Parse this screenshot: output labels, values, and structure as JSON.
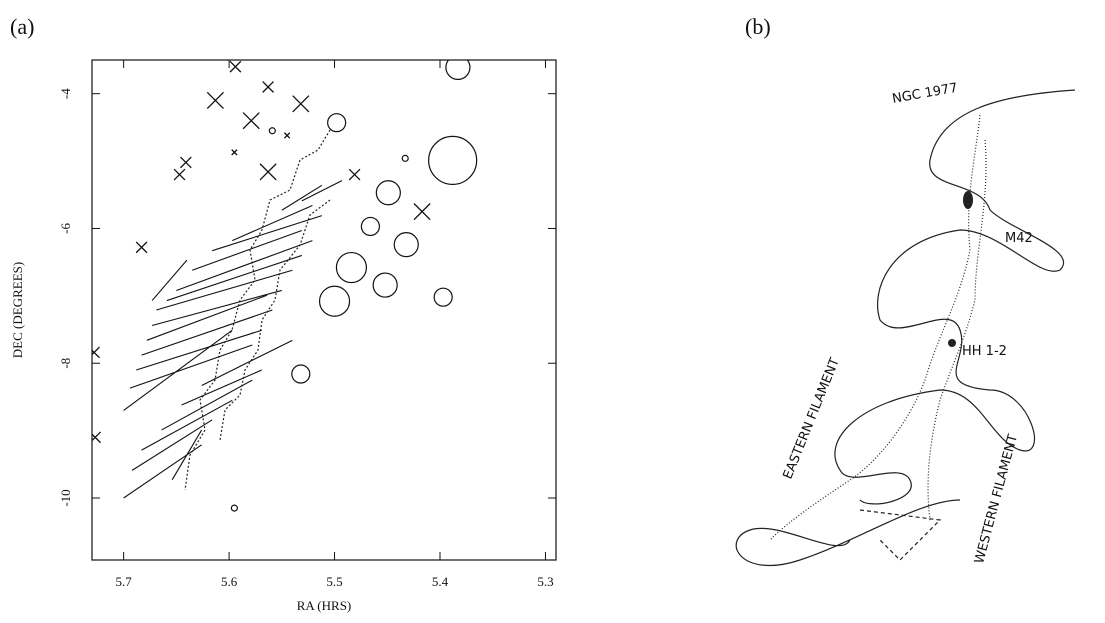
{
  "panel_labels": [
    "(a)",
    "(b)"
  ],
  "chart_data": {
    "type": "scatter",
    "xlabel": "RA (HRS)",
    "ylabel": "DEC (DEGREES)",
    "xlim": [
      5.73,
      5.29
    ],
    "ylim": [
      -10.92,
      -3.5
    ],
    "xticks": [
      5.7,
      5.6,
      5.5,
      5.4,
      5.3
    ],
    "yticks": [
      -4,
      -6,
      -8,
      -10
    ],
    "series": [
      {
        "marker": "x",
        "color": "#111111",
        "x": [
          5.594,
          5.613,
          5.579,
          5.563,
          5.532,
          5.545,
          5.595,
          5.641,
          5.647,
          5.563,
          5.481,
          5.417,
          5.683,
          5.728,
          5.727
        ],
        "y": [
          -3.6,
          -4.1,
          -4.4,
          -3.9,
          -4.15,
          -4.62,
          -4.87,
          -5.02,
          -5.2,
          -5.16,
          -5.2,
          -5.75,
          -6.28,
          -7.84,
          -9.1
        ],
        "sizes": [
          2,
          3,
          3,
          2,
          3,
          1,
          1,
          2,
          2,
          3,
          2,
          3,
          2,
          2,
          2
        ]
      },
      {
        "marker": "o",
        "color": "#111111",
        "x": [
          5.383,
          5.388,
          5.498,
          5.449,
          5.466,
          5.432,
          5.484,
          5.452,
          5.5,
          5.397,
          5.532,
          5.595,
          5.559,
          5.433
        ],
        "y": [
          -3.61,
          -4.99,
          -4.43,
          -5.47,
          -5.97,
          -6.24,
          -6.58,
          -6.84,
          -7.08,
          -7.02,
          -8.16,
          -10.15,
          -4.55,
          -4.96
        ],
        "sizes": [
          4,
          8,
          3,
          4,
          3,
          4,
          5,
          4,
          5,
          3,
          3,
          1,
          1,
          1
        ]
      },
      {
        "marker": "segment",
        "color": "#111111",
        "x0": [
          5.7,
          5.694,
          5.688,
          5.683,
          5.678,
          5.673,
          5.669,
          5.659,
          5.65,
          5.635,
          5.616,
          5.597,
          5.673,
          5.7,
          5.692,
          5.683,
          5.664,
          5.645,
          5.626,
          5.55,
          5.531,
          5.654
        ],
        "y0": [
          -8.7,
          -8.37,
          -8.1,
          -7.88,
          -7.66,
          -7.44,
          -7.21,
          -7.07,
          -6.92,
          -6.62,
          -6.33,
          -6.18,
          -7.07,
          -10.0,
          -9.59,
          -9.29,
          -8.99,
          -8.62,
          -8.33,
          -5.73,
          -5.59,
          -9.73
        ],
        "x1": [
          5.597,
          5.578,
          5.569,
          5.559,
          5.564,
          5.55,
          5.54,
          5.531,
          5.521,
          5.531,
          5.512,
          5.521,
          5.64,
          5.626,
          5.616,
          5.597,
          5.578,
          5.569,
          5.54,
          5.512,
          5.493,
          5.626
        ],
        "y1": [
          -7.51,
          -7.73,
          -7.51,
          -7.21,
          -6.99,
          -6.92,
          -6.62,
          -6.4,
          -6.18,
          -6.03,
          -5.81,
          -5.66,
          -6.47,
          -9.21,
          -8.84,
          -8.55,
          -8.25,
          -8.1,
          -7.66,
          -5.36,
          -5.29,
          -8.99
        ]
      }
    ]
  },
  "sketch": {
    "labels": [
      "NGC 1977",
      "M42",
      "HH 1-2",
      "EASTERN FILAMENT",
      "WESTERN FILAMENT"
    ]
  }
}
